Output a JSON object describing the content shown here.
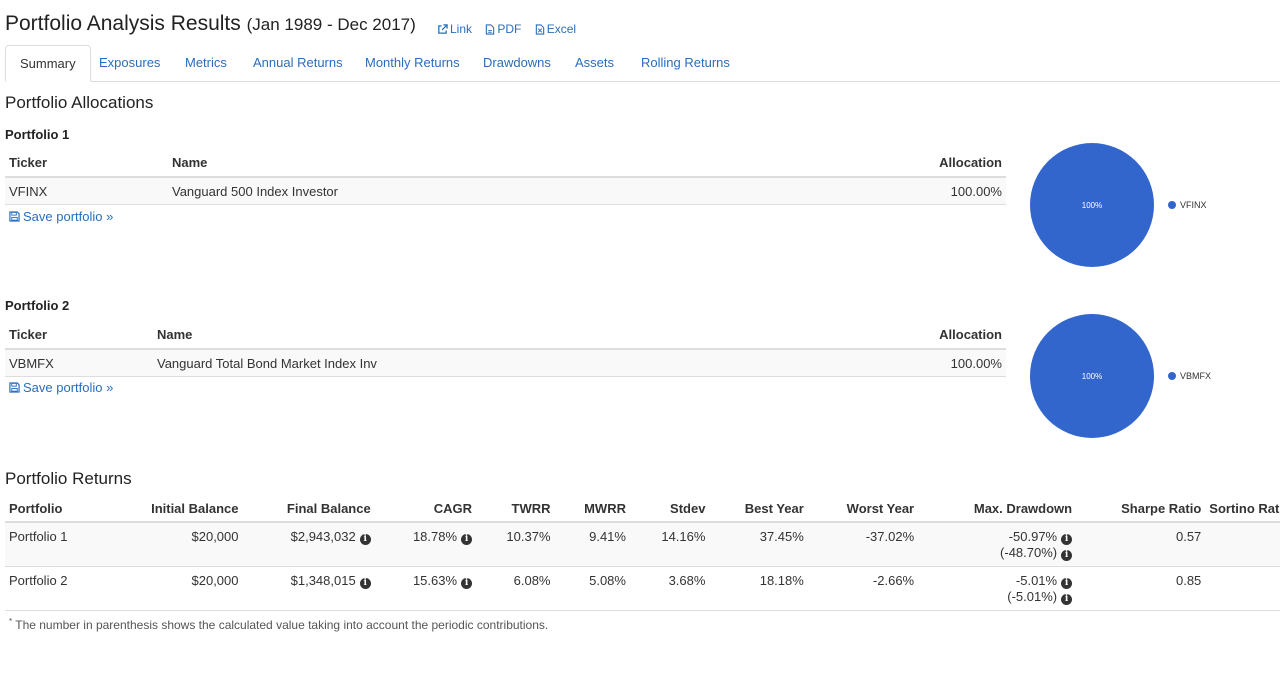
{
  "header": {
    "title": "Portfolio Analysis Results",
    "date_range": "(Jan 1989 - Dec 2017)",
    "links": [
      {
        "label": "Link",
        "icon": "external-link-icon"
      },
      {
        "label": "PDF",
        "icon": "pdf-file-icon"
      },
      {
        "label": "Excel",
        "icon": "excel-file-icon"
      }
    ]
  },
  "tabs": [
    "Summary",
    "Exposures",
    "Metrics",
    "Annual Returns",
    "Monthly Returns",
    "Drawdowns",
    "Assets",
    "Rolling Returns"
  ],
  "active_tab": "Summary",
  "allocations": {
    "heading": "Portfolio Allocations",
    "columns": {
      "ticker": "Ticker",
      "name": "Name",
      "allocation": "Allocation"
    },
    "save_label": "Save portfolio »",
    "portfolios": [
      {
        "label": "Portfolio 1",
        "ticker": "VFINX",
        "name": "Vanguard 500 Index Investor",
        "allocation": "100.00%",
        "pie_label": "100%",
        "legend": "VFINX",
        "pie_share": 1.0,
        "pie_color": "#3366cc"
      },
      {
        "label": "Portfolio 2",
        "ticker": "VBMFX",
        "name": "Vanguard Total Bond Market Index Inv",
        "allocation": "100.00%",
        "pie_label": "100%",
        "legend": "VBMFX",
        "pie_share": 1.0,
        "pie_color": "#3366cc"
      }
    ]
  },
  "returns": {
    "heading": "Portfolio Returns",
    "columns": [
      "Portfolio",
      "Initial Balance",
      "Final Balance",
      "CAGR",
      "TWRR",
      "MWRR",
      "Stdev",
      "Best Year",
      "Worst Year",
      "Max. Drawdown",
      "Sharpe Ratio",
      "Sortino Ratio"
    ],
    "rows": [
      {
        "portfolio": "Portfolio 1",
        "initial": "$20,000",
        "final": "$2,943,032",
        "cagr": "18.78%",
        "twrr": "10.37%",
        "mwrr": "9.41%",
        "stdev": "14.16%",
        "best": "37.45%",
        "worst": "-37.02%",
        "maxdd": "-50.97%",
        "maxdd_contrib": "(-48.70%)",
        "sharpe": "0.57"
      },
      {
        "portfolio": "Portfolio 2",
        "initial": "$20,000",
        "final": "$1,348,015",
        "cagr": "15.63%",
        "twrr": "6.08%",
        "mwrr": "5.08%",
        "stdev": "3.68%",
        "best": "18.18%",
        "worst": "-2.66%",
        "maxdd": "-5.01%",
        "maxdd_contrib": "(-5.01%)",
        "sharpe": "0.85"
      }
    ],
    "footnote_mark": "*",
    "footnote": "The number in parenthesis shows the calculated value taking into account the periodic contributions."
  },
  "colors": {
    "link": "#2a6ebb",
    "pie": "#3366cc"
  }
}
